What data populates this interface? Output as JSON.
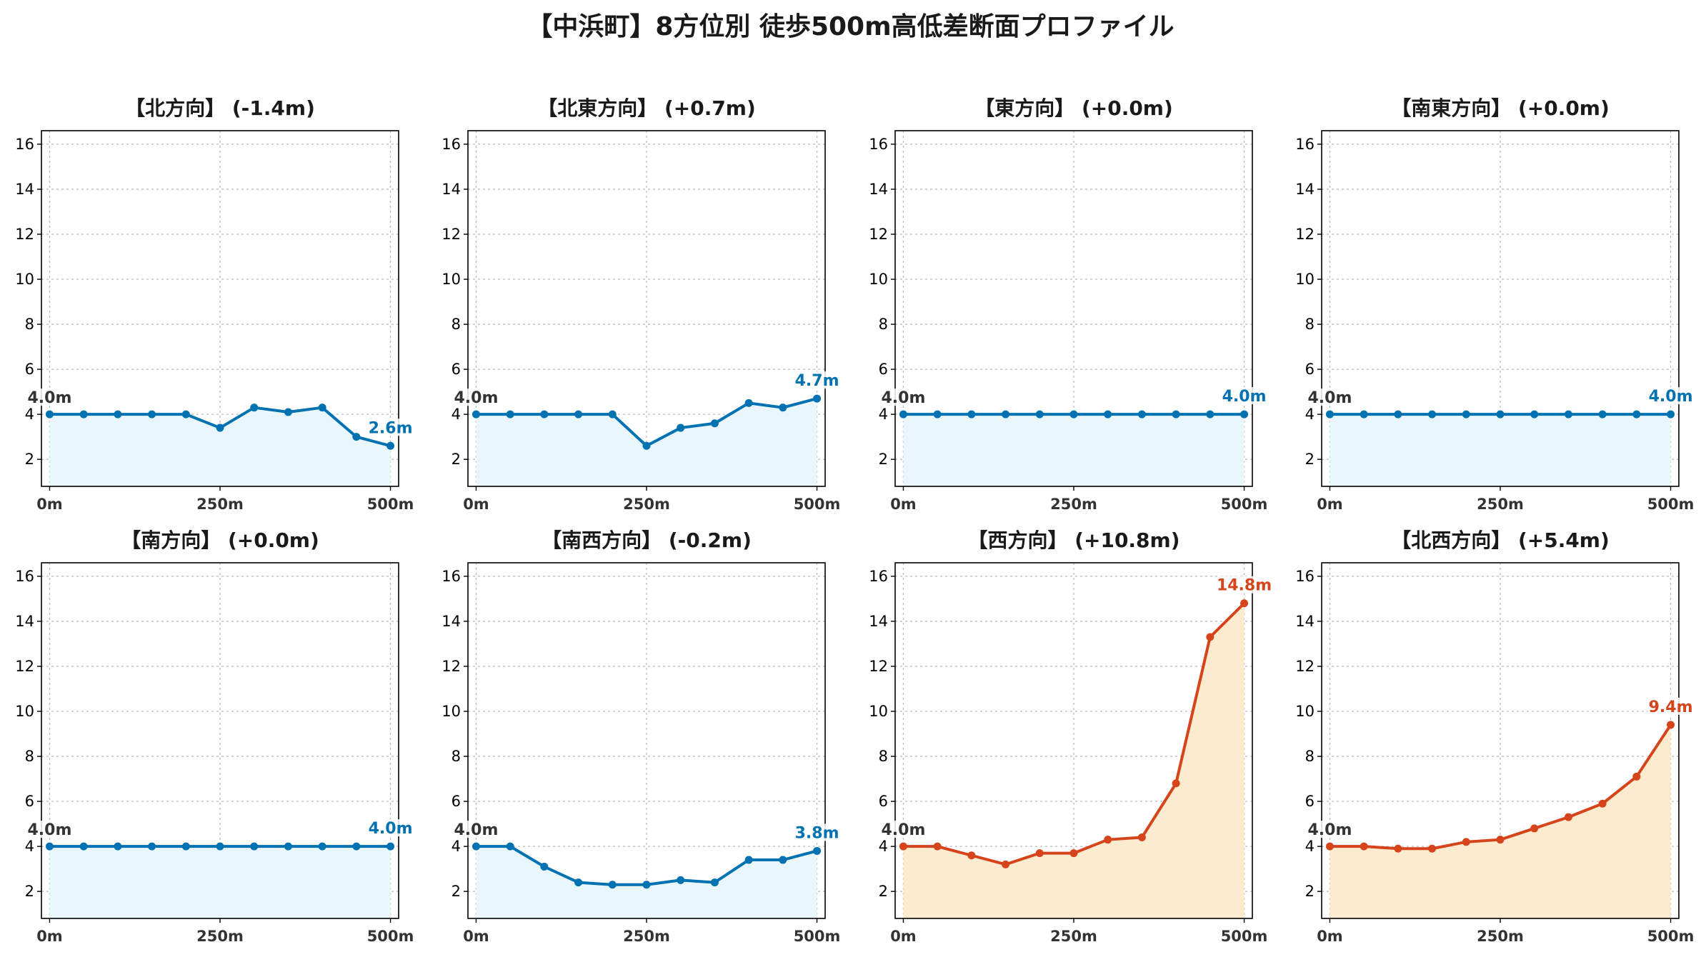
{
  "title": "【中浜町】8方位別 徒歩500m高低差断面プロファイル",
  "colors": {
    "down": "#0072b2",
    "down_fill": "#e9f7fc",
    "up": "#d5441b",
    "up_fill": "#fdebd0",
    "grid": "#bbbbbb"
  },
  "chart_data": [
    {
      "type": "line",
      "title": "【北方向】 (-1.4m)",
      "trend": "down",
      "x": [
        0,
        50,
        100,
        150,
        200,
        250,
        300,
        350,
        400,
        450,
        500
      ],
      "y": [
        4.0,
        4.0,
        4.0,
        4.0,
        4.0,
        3.4,
        4.3,
        4.1,
        4.3,
        3.0,
        2.6
      ],
      "start_label": "4.0m",
      "end_label": "2.6m",
      "xticks": [
        0,
        250,
        500
      ],
      "xtick_labels": [
        "0m",
        "250m",
        "500m"
      ],
      "yticks": [
        2,
        4,
        6,
        8,
        10,
        12,
        14,
        16
      ],
      "ylim": [
        0.8,
        16.6
      ],
      "xlim": [
        -12,
        512
      ],
      "grid": true
    },
    {
      "type": "line",
      "title": "【北東方向】 (+0.7m)",
      "trend": "down",
      "x": [
        0,
        50,
        100,
        150,
        200,
        250,
        300,
        350,
        400,
        450,
        500
      ],
      "y": [
        4.0,
        4.0,
        4.0,
        4.0,
        4.0,
        2.6,
        3.4,
        3.6,
        4.5,
        4.3,
        4.7
      ],
      "start_label": "4.0m",
      "end_label": "4.7m",
      "xticks": [
        0,
        250,
        500
      ],
      "xtick_labels": [
        "0m",
        "250m",
        "500m"
      ],
      "yticks": [
        2,
        4,
        6,
        8,
        10,
        12,
        14,
        16
      ],
      "ylim": [
        0.8,
        16.6
      ],
      "xlim": [
        -12,
        512
      ],
      "grid": true
    },
    {
      "type": "line",
      "title": "【東方向】 (+0.0m)",
      "trend": "down",
      "x": [
        0,
        50,
        100,
        150,
        200,
        250,
        300,
        350,
        400,
        450,
        500
      ],
      "y": [
        4.0,
        4.0,
        4.0,
        4.0,
        4.0,
        4.0,
        4.0,
        4.0,
        4.0,
        4.0,
        4.0
      ],
      "start_label": "4.0m",
      "end_label": "4.0m",
      "xticks": [
        0,
        250,
        500
      ],
      "xtick_labels": [
        "0m",
        "250m",
        "500m"
      ],
      "yticks": [
        2,
        4,
        6,
        8,
        10,
        12,
        14,
        16
      ],
      "ylim": [
        0.8,
        16.6
      ],
      "xlim": [
        -12,
        512
      ],
      "grid": true
    },
    {
      "type": "line",
      "title": "【南東方向】 (+0.0m)",
      "trend": "down",
      "x": [
        0,
        50,
        100,
        150,
        200,
        250,
        300,
        350,
        400,
        450,
        500
      ],
      "y": [
        4.0,
        4.0,
        4.0,
        4.0,
        4.0,
        4.0,
        4.0,
        4.0,
        4.0,
        4.0,
        4.0
      ],
      "start_label": "4.0m",
      "end_label": "4.0m",
      "xticks": [
        0,
        250,
        500
      ],
      "xtick_labels": [
        "0m",
        "250m",
        "500m"
      ],
      "yticks": [
        2,
        4,
        6,
        8,
        10,
        12,
        14,
        16
      ],
      "ylim": [
        0.8,
        16.6
      ],
      "xlim": [
        -12,
        512
      ],
      "grid": true
    },
    {
      "type": "line",
      "title": "【南方向】 (+0.0m)",
      "trend": "down",
      "x": [
        0,
        50,
        100,
        150,
        200,
        250,
        300,
        350,
        400,
        450,
        500
      ],
      "y": [
        4.0,
        4.0,
        4.0,
        4.0,
        4.0,
        4.0,
        4.0,
        4.0,
        4.0,
        4.0,
        4.0
      ],
      "start_label": "4.0m",
      "end_label": "4.0m",
      "xticks": [
        0,
        250,
        500
      ],
      "xtick_labels": [
        "0m",
        "250m",
        "500m"
      ],
      "yticks": [
        2,
        4,
        6,
        8,
        10,
        12,
        14,
        16
      ],
      "ylim": [
        0.8,
        16.6
      ],
      "xlim": [
        -12,
        512
      ],
      "grid": true
    },
    {
      "type": "line",
      "title": "【南西方向】 (-0.2m)",
      "trend": "down",
      "x": [
        0,
        50,
        100,
        150,
        200,
        250,
        300,
        350,
        400,
        450,
        500
      ],
      "y": [
        4.0,
        4.0,
        3.1,
        2.4,
        2.3,
        2.3,
        2.5,
        2.4,
        3.4,
        3.4,
        3.8
      ],
      "start_label": "4.0m",
      "end_label": "3.8m",
      "xticks": [
        0,
        250,
        500
      ],
      "xtick_labels": [
        "0m",
        "250m",
        "500m"
      ],
      "yticks": [
        2,
        4,
        6,
        8,
        10,
        12,
        14,
        16
      ],
      "ylim": [
        0.8,
        16.6
      ],
      "xlim": [
        -12,
        512
      ],
      "grid": true
    },
    {
      "type": "line",
      "title": "【西方向】 (+10.8m)",
      "trend": "up",
      "x": [
        0,
        50,
        100,
        150,
        200,
        250,
        300,
        350,
        400,
        450,
        500
      ],
      "y": [
        4.0,
        4.0,
        3.6,
        3.2,
        3.7,
        3.7,
        4.3,
        4.4,
        6.8,
        13.3,
        14.8
      ],
      "start_label": "4.0m",
      "end_label": "14.8m",
      "xticks": [
        0,
        250,
        500
      ],
      "xtick_labels": [
        "0m",
        "250m",
        "500m"
      ],
      "yticks": [
        2,
        4,
        6,
        8,
        10,
        12,
        14,
        16
      ],
      "ylim": [
        0.8,
        16.6
      ],
      "xlim": [
        -12,
        512
      ],
      "grid": true
    },
    {
      "type": "line",
      "title": "【北西方向】 (+5.4m)",
      "trend": "up",
      "x": [
        0,
        50,
        100,
        150,
        200,
        250,
        300,
        350,
        400,
        450,
        500
      ],
      "y": [
        4.0,
        4.0,
        3.9,
        3.9,
        4.2,
        4.3,
        4.8,
        5.3,
        5.9,
        7.1,
        9.4
      ],
      "start_label": "4.0m",
      "end_label": "9.4m",
      "xticks": [
        0,
        250,
        500
      ],
      "xtick_labels": [
        "0m",
        "250m",
        "500m"
      ],
      "yticks": [
        2,
        4,
        6,
        8,
        10,
        12,
        14,
        16
      ],
      "ylim": [
        0.8,
        16.6
      ],
      "xlim": [
        -12,
        512
      ],
      "grid": true
    }
  ]
}
